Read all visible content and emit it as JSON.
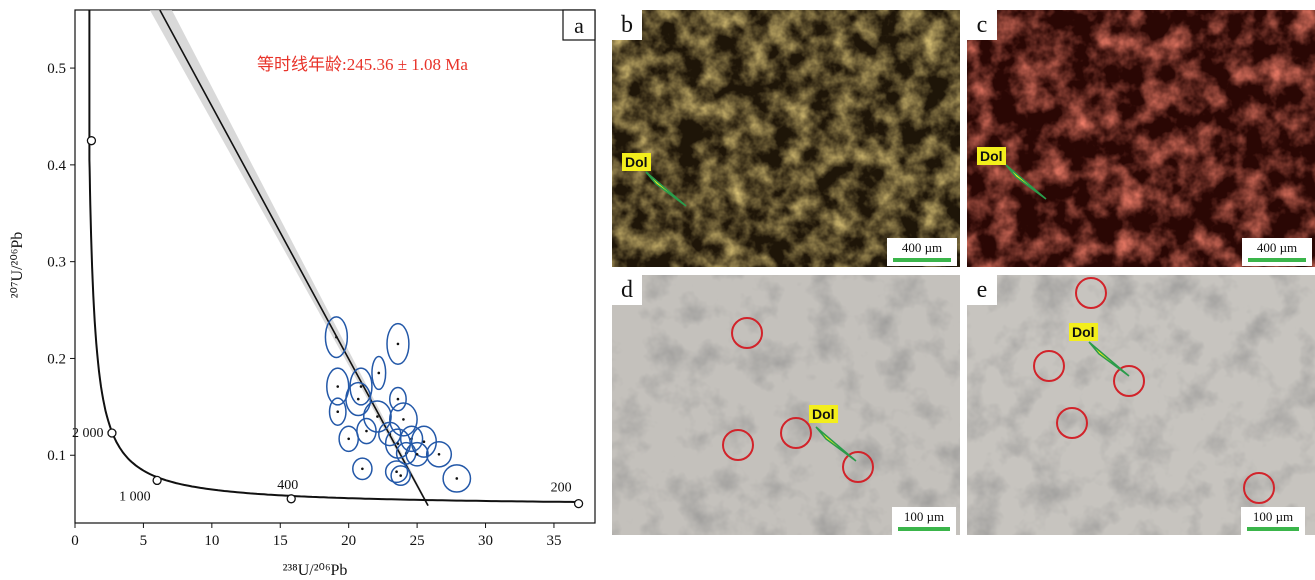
{
  "panel_a": {
    "label": "a",
    "isochron_text": "等时线年龄:245.36 ± 1.08 Ma",
    "isochron_color": "#e8332a",
    "concordia_labels": [
      "2 000",
      "1 000",
      "400",
      "200"
    ],
    "concordia_points": [
      {
        "x": 1.2,
        "y": 0.425,
        "label": ""
      },
      {
        "x": 2.7,
        "y": 0.123,
        "label": "2 000"
      },
      {
        "x": 6.0,
        "y": 0.074,
        "label": "1 000"
      },
      {
        "x": 15.8,
        "y": 0.055,
        "label": "400"
      },
      {
        "x": 36.8,
        "y": 0.05,
        "label": "200"
      }
    ],
    "ellipse_color": "#2358a8"
  },
  "chart_data": {
    "type": "scatter",
    "xlabel_text": "²³⁸U/²⁰⁶Pb",
    "ylabel_text": "²⁰⁷U/²⁰⁶Pb",
    "xlim": [
      0,
      38
    ],
    "ylim": [
      0.03,
      0.56
    ],
    "xticks": [
      "0",
      "5",
      "10",
      "15",
      "20",
      "25",
      "30",
      "35"
    ],
    "yticks": [
      "0.1",
      "0.2",
      "0.3",
      "0.4",
      "0.5"
    ],
    "isochron_line": {
      "x0": 6.2,
      "y0": 0.56,
      "x1": 25.8,
      "y1": 0.048
    },
    "points": [
      {
        "x": 19.1,
        "y": 0.222,
        "rx": 0.8,
        "ry": 0.021
      },
      {
        "x": 23.6,
        "y": 0.215,
        "rx": 0.8,
        "ry": 0.021
      },
      {
        "x": 22.2,
        "y": 0.185,
        "rx": 0.5,
        "ry": 0.017
      },
      {
        "x": 19.2,
        "y": 0.171,
        "rx": 0.8,
        "ry": 0.019
      },
      {
        "x": 20.9,
        "y": 0.171,
        "rx": 0.8,
        "ry": 0.019
      },
      {
        "x": 20.7,
        "y": 0.158,
        "rx": 0.9,
        "ry": 0.017
      },
      {
        "x": 23.6,
        "y": 0.158,
        "rx": 0.6,
        "ry": 0.012
      },
      {
        "x": 19.2,
        "y": 0.145,
        "rx": 0.6,
        "ry": 0.014
      },
      {
        "x": 22.1,
        "y": 0.14,
        "rx": 1.0,
        "ry": 0.016
      },
      {
        "x": 24.0,
        "y": 0.137,
        "rx": 1.0,
        "ry": 0.017
      },
      {
        "x": 21.3,
        "y": 0.125,
        "rx": 0.7,
        "ry": 0.013
      },
      {
        "x": 23.0,
        "y": 0.122,
        "rx": 0.8,
        "ry": 0.012
      },
      {
        "x": 20.0,
        "y": 0.117,
        "rx": 0.7,
        "ry": 0.013
      },
      {
        "x": 23.6,
        "y": 0.112,
        "rx": 0.9,
        "ry": 0.015
      },
      {
        "x": 24.6,
        "y": 0.117,
        "rx": 0.8,
        "ry": 0.013
      },
      {
        "x": 25.5,
        "y": 0.114,
        "rx": 0.9,
        "ry": 0.016
      },
      {
        "x": 24.2,
        "y": 0.102,
        "rx": 0.7,
        "ry": 0.011
      },
      {
        "x": 25.0,
        "y": 0.101,
        "rx": 0.8,
        "ry": 0.012
      },
      {
        "x": 26.6,
        "y": 0.101,
        "rx": 0.9,
        "ry": 0.013
      },
      {
        "x": 21.0,
        "y": 0.086,
        "rx": 0.7,
        "ry": 0.011
      },
      {
        "x": 23.5,
        "y": 0.083,
        "rx": 0.8,
        "ry": 0.011
      },
      {
        "x": 23.8,
        "y": 0.079,
        "rx": 0.7,
        "ry": 0.01
      },
      {
        "x": 27.9,
        "y": 0.076,
        "rx": 1.0,
        "ry": 0.014
      }
    ]
  },
  "panels": {
    "b": {
      "label": "b",
      "scale": "400 µm",
      "mineral": "Dol",
      "bg": "#8a6a1c"
    },
    "c": {
      "label": "c",
      "scale": "400 µm",
      "mineral": "Dol",
      "bg": "#5a0f08"
    },
    "d": {
      "label": "d",
      "scale": "100 µm",
      "mineral": "Dol",
      "bg": "#b9b6b1"
    },
    "e": {
      "label": "e",
      "scale": "100 µm",
      "mineral": "Dol",
      "bg": "#bdbab5"
    }
  }
}
